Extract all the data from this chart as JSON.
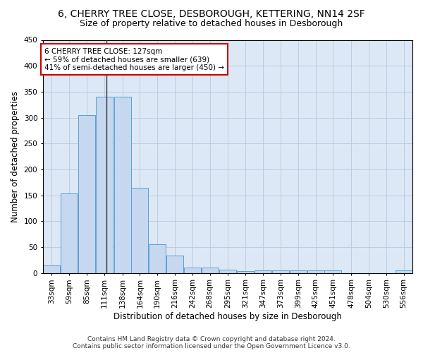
{
  "title": "6, CHERRY TREE CLOSE, DESBOROUGH, KETTERING, NN14 2SF",
  "subtitle": "Size of property relative to detached houses in Desborough",
  "xlabel": "Distribution of detached houses by size in Desborough",
  "ylabel": "Number of detached properties",
  "bar_color": "#c5d8f0",
  "bar_edge_color": "#5a9fd4",
  "categories": [
    "33sqm",
    "59sqm",
    "85sqm",
    "111sqm",
    "138sqm",
    "164sqm",
    "190sqm",
    "216sqm",
    "242sqm",
    "268sqm",
    "295sqm",
    "321sqm",
    "347sqm",
    "373sqm",
    "399sqm",
    "425sqm",
    "451sqm",
    "478sqm",
    "504sqm",
    "530sqm",
    "556sqm"
  ],
  "values": [
    15,
    153,
    305,
    340,
    340,
    165,
    55,
    33,
    10,
    10,
    6,
    3,
    5,
    5,
    5,
    5,
    5,
    0,
    0,
    0,
    5
  ],
  "bin_width": 26,
  "bin_starts": [
    33,
    59,
    85,
    111,
    138,
    164,
    190,
    216,
    242,
    268,
    295,
    321,
    347,
    373,
    399,
    425,
    451,
    478,
    504,
    530,
    556
  ],
  "property_line_x": 127,
  "property_line_color": "#333333",
  "ylim": [
    0,
    450
  ],
  "yticks": [
    0,
    50,
    100,
    150,
    200,
    250,
    300,
    350,
    400,
    450
  ],
  "annotation_text": "6 CHERRY TREE CLOSE: 127sqm\n← 59% of detached houses are smaller (639)\n41% of semi-detached houses are larger (450) →",
  "annotation_box_color": "#ffffff",
  "annotation_box_edge_color": "#cc0000",
  "footer_line1": "Contains HM Land Registry data © Crown copyright and database right 2024.",
  "footer_line2": "Contains public sector information licensed under the Open Government Licence v3.0.",
  "bg_color": "#ffffff",
  "axes_bg_color": "#dce8f5",
  "grid_color": "#b8c8dc",
  "title_fontsize": 10,
  "subtitle_fontsize": 9,
  "axis_label_fontsize": 8.5,
  "tick_fontsize": 7.5,
  "annotation_fontsize": 7.5,
  "footer_fontsize": 6.5
}
